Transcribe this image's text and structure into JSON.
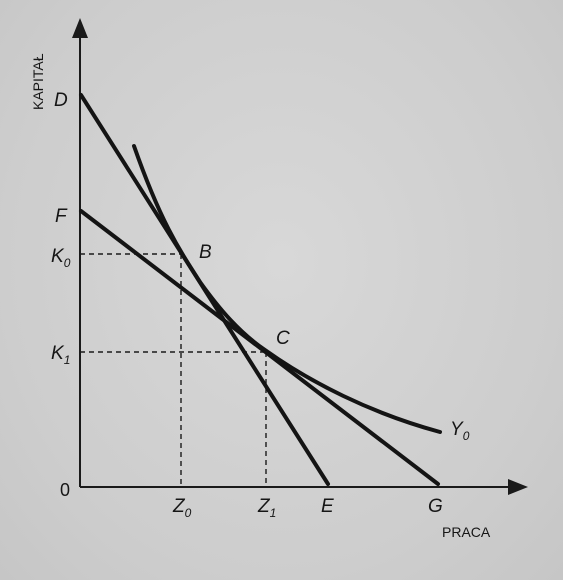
{
  "axes": {
    "y_label": "KAPITAŁ",
    "x_label": "PRACA",
    "origin": "0"
  },
  "y_ticks": [
    {
      "id": "k0",
      "base": "K",
      "sub": "0"
    },
    {
      "id": "k1",
      "base": "K",
      "sub": "1"
    }
  ],
  "x_ticks": [
    {
      "id": "z0",
      "base": "Z",
      "sub": "0"
    },
    {
      "id": "z1",
      "base": "Z",
      "sub": "1"
    }
  ],
  "points": {
    "D": "D",
    "F": "F",
    "B": "B",
    "C": "C",
    "E": "E",
    "G": "G"
  },
  "curve_label": {
    "base": "Y",
    "sub": "0"
  },
  "colors": {
    "background": "#cfcfcf",
    "ink": "#141414"
  }
}
